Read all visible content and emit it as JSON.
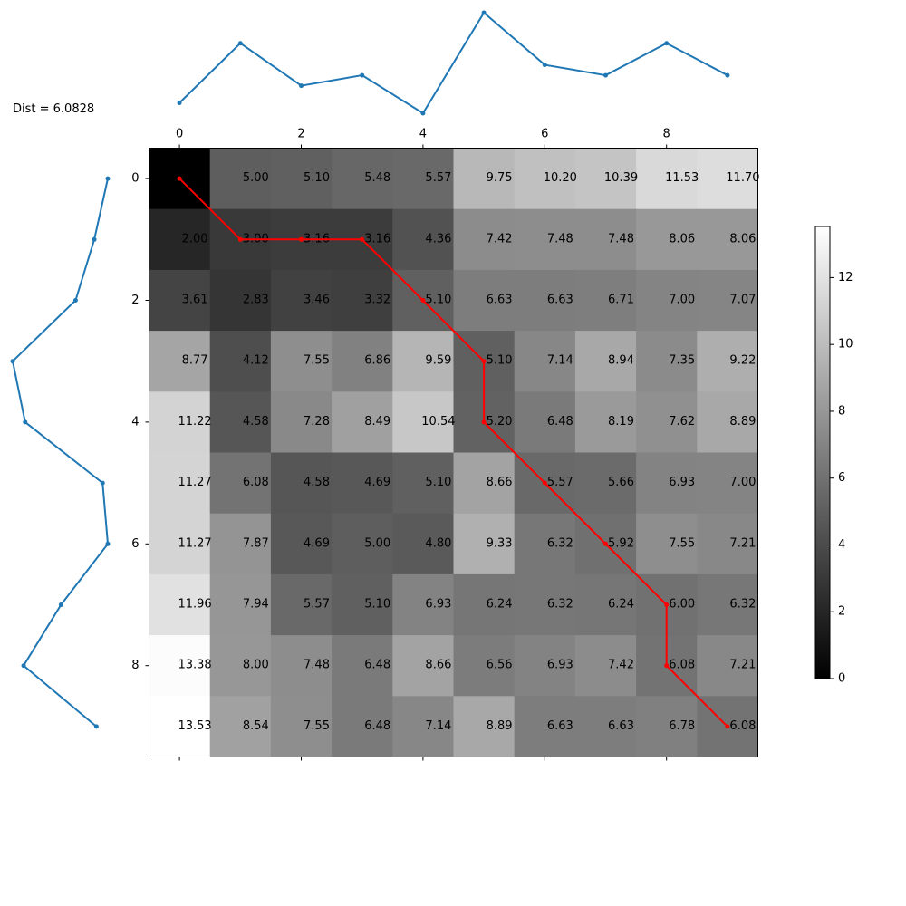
{
  "distance_label": "Dist = 6.0828",
  "chart_data": {
    "type": "heatmap",
    "colormap": "gray",
    "xlim": [
      -0.5,
      9.5
    ],
    "ylim": [
      9.5,
      -0.5
    ],
    "xticks": [
      0,
      2,
      4,
      6,
      8
    ],
    "yticks": [
      0,
      2,
      4,
      6,
      8
    ],
    "x_tick_labels": [
      "0",
      "2",
      "4",
      "6",
      "8"
    ],
    "y_tick_labels": [
      "0",
      "2",
      "4",
      "6",
      "8"
    ],
    "matrix": [
      [
        0.0,
        5.0,
        5.1,
        5.48,
        5.57,
        9.75,
        10.2,
        10.39,
        11.53,
        11.7
      ],
      [
        2.0,
        3.0,
        3.16,
        3.16,
        4.36,
        7.42,
        7.48,
        7.48,
        8.06,
        8.06
      ],
      [
        3.61,
        2.83,
        3.46,
        3.32,
        5.1,
        6.63,
        6.63,
        6.71,
        7.0,
        7.07
      ],
      [
        8.77,
        4.12,
        7.55,
        6.86,
        9.59,
        5.1,
        7.14,
        8.94,
        7.35,
        9.22
      ],
      [
        11.22,
        4.58,
        7.28,
        8.49,
        10.54,
        5.2,
        6.48,
        8.19,
        7.62,
        8.89
      ],
      [
        11.27,
        6.08,
        4.58,
        4.69,
        5.1,
        8.66,
        5.57,
        5.66,
        6.93,
        7.0
      ],
      [
        11.27,
        7.87,
        4.69,
        5.0,
        4.8,
        9.33,
        6.32,
        5.92,
        7.55,
        7.21
      ],
      [
        11.96,
        7.94,
        5.57,
        5.1,
        6.93,
        6.24,
        6.32,
        6.24,
        6.0,
        6.32
      ],
      [
        13.38,
        8.0,
        7.48,
        6.48,
        8.66,
        6.56,
        6.93,
        7.42,
        6.08,
        7.21
      ],
      [
        13.53,
        8.54,
        7.55,
        6.48,
        7.14,
        8.89,
        6.63,
        6.63,
        6.78,
        6.08
      ]
    ],
    "cell_labels": [
      [
        "",
        "5.00",
        "5.10",
        "5.48",
        "5.57",
        "9.75",
        "10.20",
        "10.39",
        "11.53",
        "11.70"
      ],
      [
        "2.00",
        "3.00",
        "3.16",
        "3.16",
        "4.36",
        "7.42",
        "7.48",
        "7.48",
        "8.06",
        "8.06"
      ],
      [
        "3.61",
        "2.83",
        "3.46",
        "3.32",
        "5.10",
        "6.63",
        "6.63",
        "6.71",
        "7.00",
        "7.07"
      ],
      [
        "8.77",
        "4.12",
        "7.55",
        "6.86",
        "9.59",
        "5.10",
        "7.14",
        "8.94",
        "7.35",
        "9.22"
      ],
      [
        "11.22",
        "4.58",
        "7.28",
        "8.49",
        "10.54",
        "5.20",
        "6.48",
        "8.19",
        "7.62",
        "8.89"
      ],
      [
        "11.27",
        "6.08",
        "4.58",
        "4.69",
        "5.10",
        "8.66",
        "5.57",
        "5.66",
        "6.93",
        "7.00"
      ],
      [
        "11.27",
        "7.87",
        "4.69",
        "5.00",
        "4.80",
        "9.33",
        "6.32",
        "5.92",
        "7.55",
        "7.21"
      ],
      [
        "11.96",
        "7.94",
        "5.57",
        "5.10",
        "6.93",
        "6.24",
        "6.32",
        "6.24",
        "6.00",
        "6.32"
      ],
      [
        "13.38",
        "8.00",
        "7.48",
        "6.48",
        "8.66",
        "6.56",
        "6.93",
        "7.42",
        "6.08",
        "7.21"
      ],
      [
        "13.53",
        "8.54",
        "7.55",
        "6.48",
        "7.14",
        "8.89",
        "6.63",
        "6.63",
        "6.78",
        "6.08"
      ]
    ],
    "warping_path": [
      [
        0,
        0
      ],
      [
        1,
        1
      ],
      [
        1,
        2
      ],
      [
        1,
        3
      ],
      [
        2,
        4
      ],
      [
        3,
        5
      ],
      [
        4,
        5
      ],
      [
        5,
        6
      ],
      [
        6,
        7
      ],
      [
        7,
        8
      ],
      [
        8,
        8
      ],
      [
        9,
        9
      ]
    ],
    "path_color": "#ff0000",
    "colorbar": {
      "range": [
        0,
        13.53
      ],
      "ticks": [
        0,
        2,
        4,
        6,
        8,
        10,
        12
      ],
      "tick_labels": [
        "0",
        "2",
        "4",
        "6",
        "8",
        "10",
        "12"
      ]
    },
    "top_series": {
      "x": [
        0,
        1,
        2,
        3,
        4,
        5,
        6,
        7,
        8,
        9
      ],
      "y": [
        0.0,
        0.8,
        0.23,
        0.37,
        -0.14,
        1.21,
        0.51,
        0.37,
        0.8,
        0.37
      ],
      "range": [
        -0.14,
        1.21
      ],
      "color": "#1f77b4"
    },
    "left_series": {
      "index": [
        0,
        1,
        2,
        3,
        4,
        5,
        6,
        7,
        8,
        9
      ],
      "value": [
        1.0,
        0.74,
        0.38,
        -0.83,
        -0.59,
        0.9,
        1.0,
        0.1,
        -0.62,
        0.78
      ],
      "range": [
        -0.83,
        1.0
      ],
      "color": "#1f77b4"
    }
  }
}
